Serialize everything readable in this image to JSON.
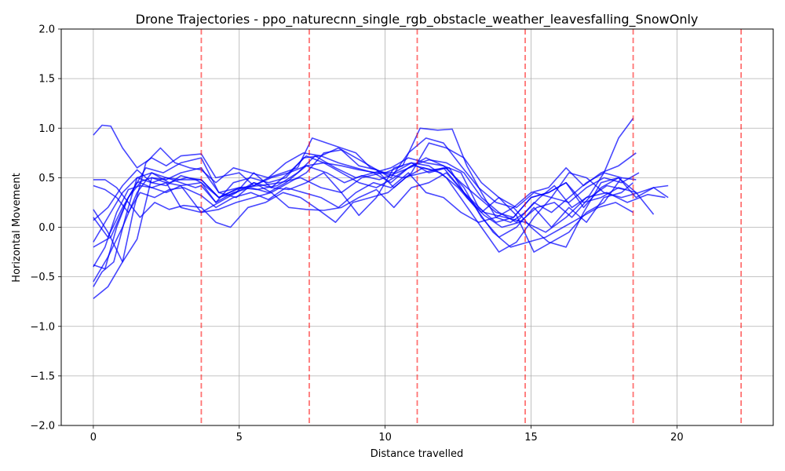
{
  "chart_data": {
    "type": "line",
    "title": "Drone Trajectories - ppo_naturecnn_single_rgb_obstacle_weather_leavesfalling_SnowOnly",
    "xlabel": "Distance travelled",
    "ylabel": "Horizontal Movement",
    "xlim": [
      -1.1,
      23.3
    ],
    "ylim": [
      -2.0,
      2.0
    ],
    "xticks": [
      0,
      5,
      10,
      15,
      20
    ],
    "xtick_labels": [
      "0",
      "5",
      "10",
      "15",
      "20"
    ],
    "yticks": [
      -2.0,
      -1.5,
      -1.0,
      -0.5,
      0.0,
      0.5,
      1.0,
      1.5,
      2.0
    ],
    "ytick_labels": [
      "−2.0",
      "−1.5",
      "−1.0",
      "−0.5",
      "0.0",
      "0.5",
      "1.0",
      "1.5",
      "2.0"
    ],
    "grid": true,
    "line_color": "#0000ff",
    "marker_line_color": "#ff0000",
    "obstacle_lines_x": [
      3.7,
      7.4,
      11.1,
      14.8,
      18.5,
      22.2
    ],
    "series": [
      {
        "x": [
          0,
          0.3,
          0.6,
          1.0,
          1.5,
          2.0,
          2.5,
          3.0,
          3.7,
          4.2,
          5.0,
          5.5,
          6.0,
          7.0,
          7.5,
          8.2,
          9.0,
          9.5,
          10.0,
          10.6,
          11.2,
          11.8,
          12.3,
          12.8,
          13.3,
          13.8,
          14.3,
          14.8,
          15.3,
          15.8,
          16.4,
          17.0,
          17.5,
          18.0,
          18.5
        ],
        "y": [
          0.93,
          1.03,
          1.02,
          0.8,
          0.6,
          0.7,
          0.62,
          0.72,
          0.74,
          0.5,
          0.55,
          0.42,
          0.5,
          0.6,
          0.9,
          0.83,
          0.75,
          0.6,
          0.55,
          0.62,
          1.0,
          0.98,
          0.99,
          0.62,
          0.35,
          0.1,
          0.05,
          0.15,
          0.3,
          0.42,
          0.2,
          0.32,
          0.55,
          0.9,
          1.1
        ]
      },
      {
        "x": [
          0,
          0.3,
          0.7,
          1.1,
          1.5,
          2.0,
          2.6,
          3.2,
          3.7,
          4.3,
          5.0,
          5.6,
          6.3,
          7.0,
          7.6,
          8.3,
          9.0,
          9.6,
          10.2,
          10.8,
          11.4,
          12.0,
          12.6,
          13.2,
          13.8,
          14.4,
          15.0,
          15.6,
          16.2,
          16.8,
          17.4,
          18.0,
          18.6
        ],
        "y": [
          -0.6,
          -0.45,
          -0.35,
          0.1,
          0.5,
          0.55,
          0.45,
          0.5,
          0.48,
          0.3,
          0.4,
          0.38,
          0.42,
          0.55,
          0.72,
          0.6,
          0.5,
          0.55,
          0.45,
          0.6,
          0.7,
          0.62,
          0.55,
          0.2,
          0.05,
          0.1,
          0.3,
          0.35,
          0.45,
          0.2,
          0.4,
          0.5,
          0.35
        ]
      },
      {
        "x": [
          0,
          0.4,
          0.8,
          1.2,
          1.6,
          2.0,
          2.5,
          3.0,
          3.7,
          4.2,
          4.8,
          5.4,
          6.0,
          6.6,
          7.3,
          8.0,
          8.6,
          9.2,
          9.8,
          10.4,
          11.0,
          11.6,
          12.2,
          12.8,
          13.4,
          14.0,
          14.6,
          15.2,
          15.8,
          16.4,
          17.0,
          17.6,
          18.2
        ],
        "y": [
          -0.38,
          -0.42,
          0.0,
          0.3,
          0.45,
          0.4,
          0.35,
          0.42,
          0.45,
          0.25,
          0.35,
          0.4,
          0.35,
          0.45,
          0.62,
          0.55,
          0.45,
          0.52,
          0.48,
          0.55,
          0.62,
          0.58,
          0.6,
          0.3,
          0.12,
          0.0,
          0.05,
          0.2,
          0.25,
          0.1,
          0.3,
          0.42,
          0.38
        ]
      },
      {
        "x": [
          0,
          0.5,
          1.0,
          1.4,
          1.8,
          2.3,
          2.8,
          3.3,
          3.7,
          4.2,
          4.8,
          5.4,
          6.0,
          6.6,
          7.2,
          7.8,
          8.4,
          9.0,
          9.6,
          10.2,
          10.8,
          11.4,
          12.0,
          12.6,
          13.2,
          13.8,
          14.4,
          15.0,
          15.6,
          16.2,
          16.8,
          17.4,
          18.0,
          18.6
        ],
        "y": [
          -0.72,
          -0.6,
          -0.35,
          0.2,
          0.65,
          0.8,
          0.65,
          0.6,
          0.58,
          0.45,
          0.6,
          0.55,
          0.5,
          0.65,
          0.75,
          0.72,
          0.8,
          0.7,
          0.6,
          0.5,
          0.75,
          0.9,
          0.85,
          0.62,
          0.4,
          0.25,
          0.2,
          0.35,
          0.4,
          0.6,
          0.42,
          0.55,
          0.62,
          0.75
        ]
      },
      {
        "x": [
          0,
          0.4,
          0.8,
          1.2,
          1.6,
          2.1,
          2.6,
          3.1,
          3.7,
          4.2,
          4.7,
          5.3,
          5.9,
          6.5,
          7.1,
          7.7,
          8.3,
          8.9,
          9.5,
          10.1,
          10.7,
          11.3,
          11.9,
          12.5,
          13.1,
          13.7,
          14.3,
          14.9,
          15.5,
          16.1,
          16.7,
          17.3,
          17.9,
          18.5
        ],
        "y": [
          0.48,
          0.48,
          0.4,
          0.25,
          0.1,
          0.25,
          0.18,
          0.22,
          0.2,
          0.05,
          0.0,
          0.2,
          0.25,
          0.35,
          0.3,
          0.18,
          0.05,
          0.25,
          0.3,
          0.35,
          0.5,
          0.6,
          0.55,
          0.4,
          0.2,
          -0.05,
          -0.2,
          -0.15,
          -0.1,
          0.0,
          0.1,
          0.2,
          0.25,
          0.15
        ]
      },
      {
        "x": [
          0,
          0.5,
          1.0,
          1.5,
          2.0,
          2.5,
          3.0,
          3.7,
          4.3,
          5.0,
          5.7,
          6.4,
          7.1,
          7.8,
          8.5,
          9.2,
          9.9,
          10.6,
          11.3,
          12.0,
          12.7,
          13.4,
          14.1,
          14.8,
          15.5,
          16.2,
          16.9,
          17.6,
          18.3,
          19.0,
          19.6
        ],
        "y": [
          0.18,
          -0.05,
          -0.35,
          -0.12,
          0.5,
          0.48,
          0.55,
          0.6,
          0.35,
          0.4,
          0.42,
          0.45,
          0.5,
          0.4,
          0.35,
          0.5,
          0.55,
          0.5,
          0.55,
          0.6,
          0.35,
          0.15,
          0.1,
          0.05,
          -0.05,
          0.1,
          0.3,
          0.35,
          0.25,
          0.33,
          0.3
        ]
      },
      {
        "x": [
          0,
          0.4,
          0.8,
          1.2,
          1.6,
          2.1,
          2.6,
          3.1,
          3.7,
          4.2,
          4.8,
          5.4,
          6.0,
          6.6,
          7.2,
          7.8,
          8.4,
          9.0,
          9.6,
          10.2,
          10.8,
          11.4,
          12.0,
          12.6,
          13.2,
          13.8,
          14.4,
          15.0,
          15.6,
          16.2,
          16.8,
          17.4,
          18.0,
          18.6,
          19.2,
          19.7
        ],
        "y": [
          0.42,
          0.38,
          0.3,
          0.15,
          0.35,
          0.3,
          0.38,
          0.4,
          0.32,
          0.2,
          0.3,
          0.35,
          0.28,
          0.4,
          0.35,
          0.3,
          0.2,
          0.35,
          0.45,
          0.4,
          0.55,
          0.35,
          0.3,
          0.15,
          0.05,
          0.1,
          0.2,
          0.0,
          -0.15,
          -0.2,
          0.15,
          0.45,
          0.5,
          0.3,
          0.4,
          0.42
        ]
      },
      {
        "x": [
          0,
          0.5,
          1.0,
          1.5,
          2.0,
          2.5,
          3.0,
          3.5,
          3.7,
          4.3,
          4.9,
          5.5,
          6.1,
          6.7,
          7.3,
          7.9,
          8.5,
          9.1,
          9.7,
          10.3,
          10.9,
          11.5,
          12.1,
          12.7,
          13.3,
          13.9,
          14.5,
          15.1,
          15.7,
          16.3,
          16.9,
          17.5,
          18.1,
          18.7
        ],
        "y": [
          0.07,
          0.2,
          0.42,
          0.58,
          0.45,
          0.42,
          0.52,
          0.48,
          0.45,
          0.3,
          0.38,
          0.42,
          0.5,
          0.55,
          0.62,
          0.65,
          0.62,
          0.58,
          0.55,
          0.55,
          0.65,
          0.62,
          0.5,
          0.25,
          0.0,
          -0.25,
          -0.15,
          0.1,
          0.3,
          0.25,
          0.4,
          0.5,
          0.45,
          0.55
        ]
      },
      {
        "x": [
          0,
          0.5,
          1.0,
          1.5,
          2.0,
          2.5,
          3.0,
          3.5,
          3.7,
          4.2,
          4.8,
          5.4,
          6.0,
          6.6,
          7.2,
          7.8,
          8.4,
          9.0,
          9.6,
          10.2,
          10.8,
          11.4,
          12.0,
          12.6,
          13.2,
          13.8,
          14.4,
          15.0,
          15.6,
          16.2,
          16.8,
          17.4,
          18.0,
          18.6,
          19.2
        ],
        "y": [
          -0.15,
          0.1,
          0.35,
          0.5,
          0.45,
          0.5,
          0.45,
          0.4,
          0.42,
          0.25,
          0.45,
          0.5,
          0.45,
          0.5,
          0.7,
          0.72,
          0.65,
          0.6,
          0.55,
          0.6,
          0.7,
          0.65,
          0.62,
          0.45,
          0.3,
          0.15,
          0.1,
          0.3,
          0.35,
          0.45,
          0.25,
          0.3,
          0.4,
          0.35,
          0.13
        ]
      },
      {
        "x": [
          0,
          0.4,
          0.8,
          1.2,
          1.6,
          2.0,
          2.5,
          3.0,
          3.7,
          4.3,
          4.9,
          5.5,
          6.1,
          6.7,
          7.3,
          7.9,
          8.5,
          9.1,
          9.7,
          10.3,
          10.9,
          11.5,
          12.1,
          12.7,
          13.3,
          13.9,
          14.5,
          15.1,
          15.7,
          16.3,
          16.9,
          17.5,
          18.1
        ],
        "y": [
          -0.4,
          -0.2,
          0.15,
          0.38,
          0.42,
          0.4,
          0.45,
          0.42,
          0.15,
          0.18,
          0.25,
          0.3,
          0.35,
          0.2,
          0.18,
          0.17,
          0.2,
          0.3,
          0.38,
          0.2,
          0.4,
          0.45,
          0.55,
          0.35,
          0.15,
          0.3,
          0.12,
          -0.25,
          -0.15,
          -0.05,
          0.15,
          0.25,
          0.5
        ]
      },
      {
        "x": [
          0,
          0.6,
          1.2,
          1.8,
          2.4,
          3.0,
          3.7,
          4.3,
          4.9,
          5.5,
          6.1,
          6.7,
          7.3,
          7.9,
          8.5,
          9.1,
          9.7,
          10.3,
          10.9,
          11.5,
          12.1,
          12.7,
          13.3,
          13.9,
          14.5,
          15.1,
          15.7,
          16.3,
          16.9,
          17.5,
          18.1,
          18.7,
          19.2,
          19.7
        ],
        "y": [
          -0.2,
          -0.1,
          0.3,
          0.6,
          0.55,
          0.65,
          0.7,
          0.35,
          0.3,
          0.45,
          0.35,
          0.45,
          0.55,
          0.75,
          0.78,
          0.62,
          0.58,
          0.4,
          0.55,
          0.85,
          0.8,
          0.7,
          0.45,
          0.3,
          0.2,
          0.35,
          0.3,
          0.55,
          0.5,
          0.35,
          0.3,
          0.35,
          0.4,
          0.3
        ]
      },
      {
        "x": [
          0,
          0.5,
          1.0,
          1.5,
          2.0,
          2.5,
          3.0,
          3.7,
          4.3,
          4.9,
          5.5,
          6.1,
          6.7,
          7.3,
          7.9,
          8.5,
          9.1,
          9.7,
          10.3,
          10.9,
          11.5,
          12.1,
          12.7,
          13.3,
          13.9,
          14.5,
          15.1,
          15.7,
          16.3,
          16.9,
          17.5,
          18.1,
          18.5
        ],
        "y": [
          0.1,
          -0.1,
          0.2,
          0.45,
          0.5,
          0.45,
          0.2,
          0.15,
          0.25,
          0.35,
          0.55,
          0.4,
          0.38,
          0.45,
          0.55,
          0.35,
          0.12,
          0.3,
          0.6,
          0.65,
          0.55,
          0.6,
          0.4,
          0.1,
          -0.1,
          0.0,
          0.2,
          0.0,
          0.2,
          0.05,
          0.3,
          0.35,
          0.45
        ]
      },
      {
        "x": [
          0,
          0.5,
          1.0,
          1.5,
          2.0,
          2.5,
          3.0,
          3.7,
          4.3,
          4.9,
          5.5,
          6.1,
          6.7,
          7.3,
          7.9,
          8.5,
          9.1,
          9.7,
          10.3,
          10.9,
          11.5,
          12.1,
          12.7,
          13.3,
          13.9,
          14.5,
          15.1,
          15.7,
          16.3,
          16.9,
          17.5,
          18.1,
          18.6
        ],
        "y": [
          -0.55,
          -0.3,
          0.0,
          0.35,
          0.55,
          0.5,
          0.48,
          0.48,
          0.3,
          0.35,
          0.45,
          0.4,
          0.55,
          0.72,
          0.65,
          0.55,
          0.45,
          0.4,
          0.5,
          0.62,
          0.68,
          0.65,
          0.55,
          0.3,
          0.15,
          0.05,
          0.25,
          0.15,
          0.3,
          0.45,
          0.55,
          0.5,
          0.48
        ]
      }
    ]
  }
}
